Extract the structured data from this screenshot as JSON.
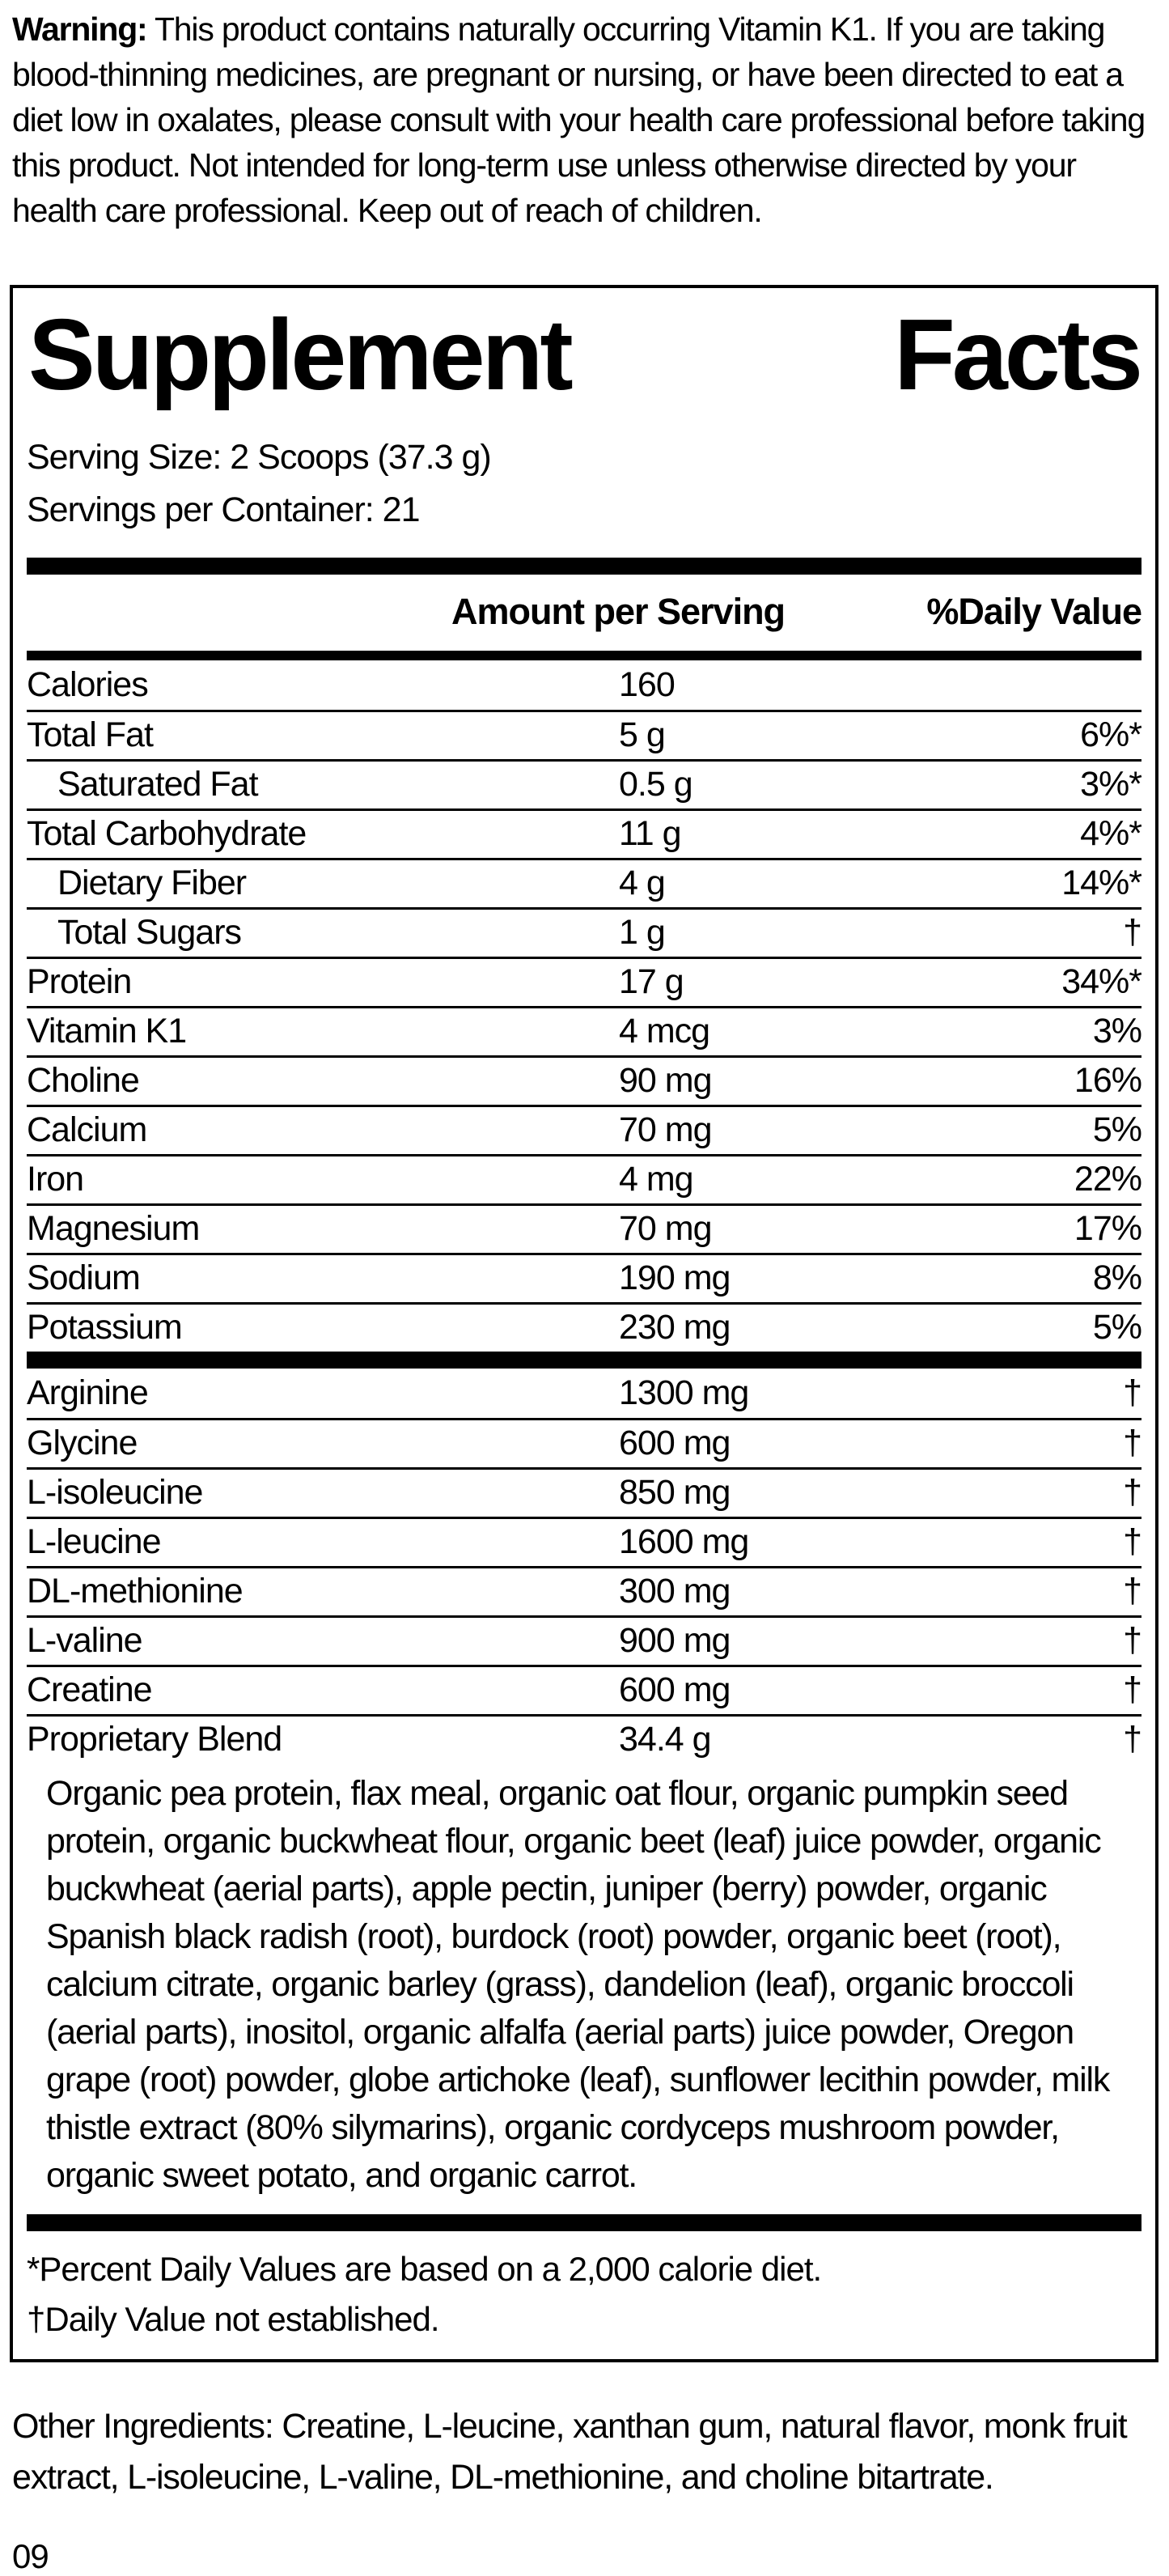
{
  "colors": {
    "text": "#000000",
    "background": "#ffffff"
  },
  "warning": {
    "label": "Warning:",
    "text": " This product contains naturally occurring Vitamin K1. If you are taking blood-thinning medicines, are pregnant or nursing, or have been directed to eat a diet low in oxalates, please consult with your health care professional before taking this product. Not intended for long-term use unless otherwise directed by your health care professional. Keep out of reach of children."
  },
  "panel": {
    "title_word_1": "Supplement",
    "title_word_2": "Facts",
    "serving_size": "Serving Size: 2 Scoops (37.3 g)",
    "servings_per_container": "Servings per Container: 21",
    "header": {
      "amount": "Amount per Serving",
      "daily_value": "%Daily Value"
    },
    "nutrient_rows": [
      {
        "label": "Calories",
        "amount": "160",
        "dv": "",
        "indent": false
      },
      {
        "label": "Total Fat",
        "amount": "5 g",
        "dv": "6%*",
        "indent": false
      },
      {
        "label": "Saturated Fat",
        "amount": "0.5 g",
        "dv": "3%*",
        "indent": true
      },
      {
        "label": "Total Carbohydrate",
        "amount": "11 g",
        "dv": "4%*",
        "indent": false
      },
      {
        "label": "Dietary Fiber",
        "amount": "4 g",
        "dv": "14%*",
        "indent": true
      },
      {
        "label": "Total Sugars",
        "amount": "1 g",
        "dv": "†",
        "indent": true
      },
      {
        "label": "Protein",
        "amount": "17 g",
        "dv": "34%*",
        "indent": false
      },
      {
        "label": "Vitamin K1",
        "amount": "4 mcg",
        "dv": "3%",
        "indent": false
      },
      {
        "label": "Choline",
        "amount": "90 mg",
        "dv": "16%",
        "indent": false
      },
      {
        "label": "Calcium",
        "amount": "70 mg",
        "dv": "5%",
        "indent": false
      },
      {
        "label": "Iron",
        "amount": "4 mg",
        "dv": "22%",
        "indent": false
      },
      {
        "label": "Magnesium",
        "amount": "70 mg",
        "dv": "17%",
        "indent": false
      },
      {
        "label": "Sodium",
        "amount": "190 mg",
        "dv": "8%",
        "indent": false
      },
      {
        "label": "Potassium",
        "amount": "230 mg",
        "dv": "5%",
        "indent": false
      }
    ],
    "amino_rows": [
      {
        "label": "Arginine",
        "amount": "1300 mg",
        "dv": "†",
        "indent": false
      },
      {
        "label": "Glycine",
        "amount": "600 mg",
        "dv": "†",
        "indent": false
      },
      {
        "label": "L-isoleucine",
        "amount": "850 mg",
        "dv": "†",
        "indent": false
      },
      {
        "label": "L-leucine",
        "amount": "1600 mg",
        "dv": "†",
        "indent": false
      },
      {
        "label": "DL-methionine",
        "amount": "300 mg",
        "dv": "†",
        "indent": false
      },
      {
        "label": "L-valine",
        "amount": "900 mg",
        "dv": "†",
        "indent": false
      },
      {
        "label": "Creatine",
        "amount": "600 mg",
        "dv": "†",
        "indent": false
      }
    ],
    "proprietary_blend": {
      "label": "Proprietary Blend",
      "amount": "34.4 g",
      "dv": "†",
      "description": "Organic pea protein, flax meal, organic oat flour, organic pumpkin seed protein, organic buckwheat flour, organic beet (leaf) juice powder, organic buckwheat (aerial parts), apple pectin, juniper (berry) powder, organic Spanish black radish (root), burdock (root) powder, organic beet (root), calcium citrate, organic barley (grass), dandelion (leaf), organic broccoli (aerial parts), inositol, organic alfalfa (aerial parts) juice powder, Oregon grape (root) powder, globe artichoke (leaf), sunflower lecithin powder, milk thistle extract (80% silymarins), organic cordyceps mushroom powder, organic sweet potato, and organic carrot."
    },
    "footnotes": [
      "*Percent Daily Values are based on a 2,000 calorie diet.",
      "†Daily Value not established."
    ]
  },
  "other_ingredients": "Other Ingredients: Creatine, L-leucine, xanthan gum, natural flavor, monk fruit extract, L-isoleucine, L-valine, DL-methionine, and choline bitartrate.",
  "page_number": "09"
}
